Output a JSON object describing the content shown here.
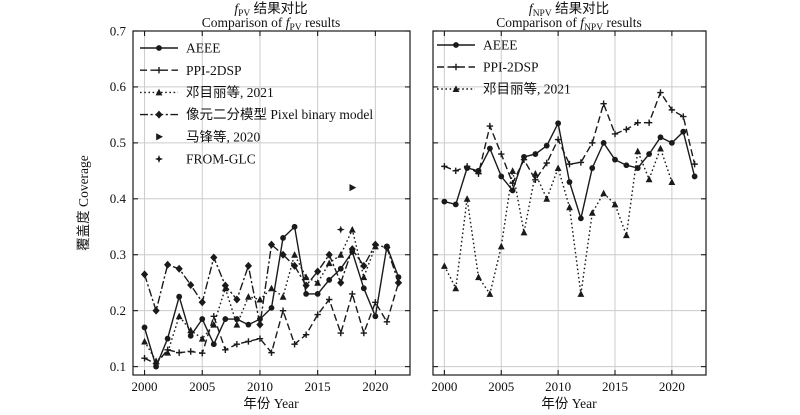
{
  "colors": {
    "line": "#1a1a1a",
    "grid": "#cccccc",
    "background": "#ffffff",
    "text": "#111111"
  },
  "chart_data": [
    {
      "id": "fpv",
      "type": "line",
      "title_zh": {
        "f": "f",
        "sub": "PV",
        "rest": " 结果对比"
      },
      "title_en": {
        "pre": "Comparison of ",
        "f": "f",
        "sub": "PV",
        "post": " results"
      },
      "xlabel": "年份 Year",
      "ylabel": "覆盖度 Coverage",
      "xlim": [
        1999,
        2023
      ],
      "ylim": [
        0.085,
        0.7
      ],
      "xticks": [
        2000,
        2005,
        2010,
        2015,
        2020
      ],
      "yticks": [
        0.1,
        0.2,
        0.3,
        0.4,
        0.5,
        0.6,
        0.7
      ],
      "grid": true,
      "show_yticklabels": true,
      "legend_position": "top-left",
      "series": [
        {
          "name": "AEEE",
          "marker": "circle",
          "line": "solid",
          "x": [
            2000,
            2001,
            2002,
            2003,
            2004,
            2005,
            2006,
            2007,
            2008,
            2009,
            2010,
            2011,
            2012,
            2013,
            2014,
            2015,
            2016,
            2017,
            2018,
            2019,
            2020,
            2021,
            2022
          ],
          "y": [
            0.17,
            0.1,
            0.15,
            0.225,
            0.155,
            0.185,
            0.14,
            0.185,
            0.185,
            0.175,
            0.185,
            0.205,
            0.33,
            0.35,
            0.23,
            0.23,
            0.255,
            0.275,
            0.305,
            0.24,
            0.19,
            0.315,
            0.26
          ]
        },
        {
          "name": "PPI-2DSP",
          "marker": "plus",
          "line": "dashed",
          "x": [
            2000,
            2001,
            2002,
            2003,
            2004,
            2005,
            2006,
            2007,
            2008,
            2009,
            2010,
            2011,
            2012,
            2013,
            2014,
            2015,
            2016,
            2017,
            2018,
            2019,
            2020,
            2021,
            2022
          ],
          "y": [
            0.115,
            0.105,
            0.13,
            0.125,
            0.127,
            0.124,
            0.19,
            0.13,
            0.14,
            0.145,
            0.15,
            0.125,
            0.2,
            0.14,
            0.157,
            0.193,
            0.22,
            0.16,
            0.23,
            0.16,
            0.215,
            0.18,
            0.25
          ]
        },
        {
          "name": "邓目丽等, 2021",
          "marker": "triangle",
          "line": "dotted",
          "x": [
            2000,
            2001,
            2002,
            2003,
            2004,
            2005,
            2006,
            2007,
            2008,
            2009,
            2010,
            2011,
            2012,
            2013,
            2014,
            2015,
            2016,
            2017,
            2018,
            2019,
            2020
          ],
          "y": [
            0.145,
            0.11,
            0.125,
            0.19,
            0.165,
            0.15,
            0.175,
            0.24,
            0.175,
            0.225,
            0.22,
            0.24,
            0.225,
            0.3,
            0.26,
            0.25,
            0.285,
            0.3,
            0.345,
            0.26,
            0.315
          ]
        },
        {
          "name": "像元二分模型 Pixel binary model",
          "marker": "diamond",
          "line": "dashdot",
          "x": [
            2000,
            2001,
            2002,
            2003,
            2004,
            2005,
            2006,
            2007,
            2008,
            2009,
            2010,
            2011,
            2012,
            2013,
            2014,
            2015,
            2016,
            2017,
            2018,
            2019,
            2020,
            2021,
            2022
          ],
          "y": [
            0.265,
            0.2,
            0.282,
            0.275,
            0.246,
            0.215,
            0.295,
            0.245,
            0.22,
            0.28,
            0.175,
            0.318,
            0.3,
            0.28,
            0.245,
            0.27,
            0.3,
            0.25,
            0.31,
            0.28,
            0.318,
            0.313,
            0.25
          ]
        },
        {
          "name": "马锋等, 2020",
          "marker": "triangle-right",
          "line": "none",
          "x": [
            2018
          ],
          "y": [
            0.42
          ]
        },
        {
          "name": "FROM-GLC",
          "marker": "star",
          "line": "none",
          "x": [
            2017
          ],
          "y": [
            0.345
          ]
        }
      ]
    },
    {
      "id": "fnpv",
      "type": "line",
      "title_zh": {
        "f": "f",
        "sub": "NPV",
        "rest": " 结果对比"
      },
      "title_en": {
        "pre": "Comparison of ",
        "f": "f",
        "sub": "NPV",
        "post": " results"
      },
      "xlabel": "年份 Year",
      "ylabel": "",
      "xlim": [
        1999,
        2023
      ],
      "ylim": [
        0.085,
        0.7
      ],
      "xticks": [
        2000,
        2005,
        2010,
        2015,
        2020
      ],
      "yticks": [
        0.1,
        0.2,
        0.3,
        0.4,
        0.5,
        0.6,
        0.7
      ],
      "grid": true,
      "show_yticklabels": false,
      "legend_position": "top-left",
      "series": [
        {
          "name": "AEEE",
          "marker": "circle",
          "line": "solid",
          "x": [
            2000,
            2001,
            2002,
            2003,
            2004,
            2005,
            2006,
            2007,
            2008,
            2009,
            2010,
            2011,
            2012,
            2013,
            2014,
            2015,
            2016,
            2017,
            2018,
            2019,
            2020,
            2021,
            2022
          ],
          "y": [
            0.395,
            0.39,
            0.455,
            0.45,
            0.49,
            0.44,
            0.415,
            0.475,
            0.48,
            0.495,
            0.535,
            0.43,
            0.365,
            0.455,
            0.5,
            0.47,
            0.46,
            0.455,
            0.48,
            0.51,
            0.5,
            0.52,
            0.44
          ]
        },
        {
          "name": "PPI-2DSP",
          "marker": "plus",
          "line": "dashed",
          "x": [
            2000,
            2001,
            2002,
            2003,
            2004,
            2005,
            2006,
            2007,
            2008,
            2009,
            2010,
            2011,
            2012,
            2013,
            2014,
            2015,
            2016,
            2017,
            2018,
            2019,
            2020,
            2021,
            2022
          ],
          "y": [
            0.458,
            0.45,
            0.458,
            0.445,
            0.53,
            0.48,
            0.428,
            0.47,
            0.434,
            0.464,
            0.506,
            0.462,
            0.465,
            0.5,
            0.57,
            0.516,
            0.524,
            0.536,
            0.536,
            0.59,
            0.559,
            0.547,
            0.462
          ]
        },
        {
          "name": "邓目丽等, 2021",
          "marker": "triangle",
          "line": "dotted",
          "x": [
            2000,
            2001,
            2002,
            2003,
            2004,
            2005,
            2006,
            2007,
            2008,
            2009,
            2010,
            2011,
            2012,
            2013,
            2014,
            2015,
            2016,
            2017,
            2018,
            2019,
            2020
          ],
          "y": [
            0.28,
            0.24,
            0.4,
            0.26,
            0.23,
            0.315,
            0.45,
            0.34,
            0.445,
            0.4,
            0.455,
            0.385,
            0.23,
            0.375,
            0.41,
            0.39,
            0.335,
            0.485,
            0.435,
            0.49,
            0.43
          ]
        }
      ]
    }
  ]
}
